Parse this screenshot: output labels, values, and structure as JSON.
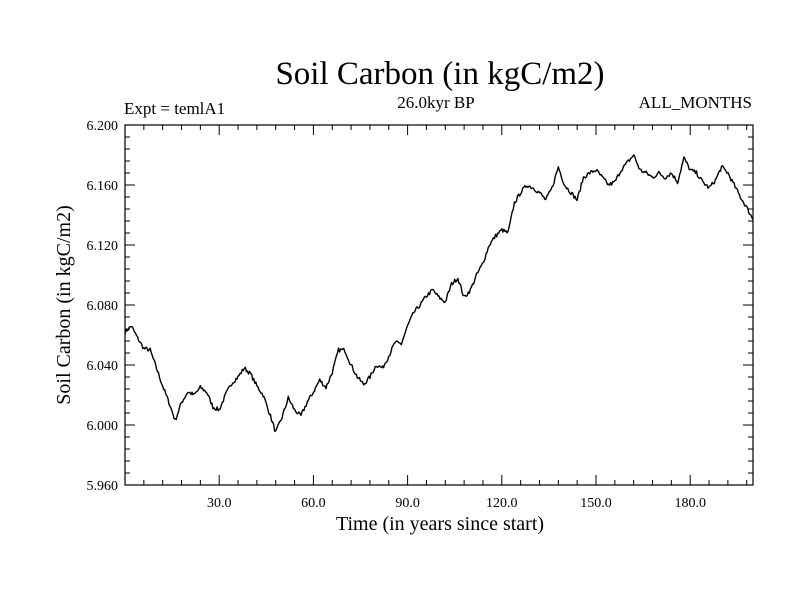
{
  "chart_data": {
    "type": "line",
    "title": "Soil Carbon (in kgC/m2)",
    "left_subtitle": "Expt = temlA1",
    "center_subtitle": "26.0kyr BP",
    "right_subtitle": "ALL_MONTHS",
    "xlabel": "Time (in years since start)",
    "ylabel": "Soil Carbon (in kgC/m2)",
    "xlim": [
      0,
      200
    ],
    "ylim": [
      5.96,
      6.2
    ],
    "xticks": [
      30,
      60,
      90,
      120,
      150,
      180
    ],
    "xtick_labels": [
      "30.0",
      "60.0",
      "90.0",
      "120.0",
      "150.0",
      "180.0"
    ],
    "yticks": [
      5.96,
      6.0,
      6.04,
      6.08,
      6.12,
      6.16,
      6.2
    ],
    "ytick_labels": [
      "5.960",
      "6.000",
      "6.040",
      "6.080",
      "6.120",
      "6.160",
      "6.200"
    ],
    "series": [
      {
        "name": "Soil Carbon",
        "color": "#000000",
        "x": [
          0,
          2,
          4,
          6,
          8,
          10,
          12,
          14,
          16,
          18,
          20,
          22,
          24,
          26,
          28,
          30,
          32,
          34,
          36,
          38,
          40,
          42,
          44,
          46,
          48,
          50,
          52,
          54,
          56,
          58,
          60,
          62,
          64,
          66,
          68,
          70,
          72,
          74,
          76,
          78,
          80,
          82,
          84,
          86,
          88,
          90,
          92,
          94,
          96,
          98,
          100,
          102,
          104,
          106,
          108,
          110,
          112,
          114,
          116,
          118,
          120,
          122,
          124,
          126,
          128,
          130,
          132,
          134,
          136,
          138,
          140,
          142,
          144,
          146,
          148,
          150,
          152,
          154,
          156,
          158,
          160,
          162,
          164,
          166,
          168,
          170,
          172,
          174,
          176,
          178,
          180,
          182,
          184,
          186,
          188,
          190,
          192,
          194,
          196,
          198,
          200
        ],
        "values": [
          6.062,
          6.066,
          6.058,
          6.051,
          6.05,
          6.038,
          6.026,
          6.015,
          6.003,
          6.015,
          6.022,
          6.02,
          6.025,
          6.022,
          6.012,
          6.01,
          6.02,
          6.028,
          6.032,
          6.038,
          6.034,
          6.026,
          6.02,
          6.008,
          5.995,
          6.005,
          6.018,
          6.01,
          6.006,
          6.015,
          6.022,
          6.03,
          6.025,
          6.035,
          6.05,
          6.05,
          6.04,
          6.032,
          6.027,
          6.032,
          6.04,
          6.038,
          6.046,
          6.055,
          6.054,
          6.066,
          6.075,
          6.08,
          6.086,
          6.09,
          6.085,
          6.082,
          6.094,
          6.098,
          6.085,
          6.09,
          6.1,
          6.108,
          6.12,
          6.126,
          6.13,
          6.128,
          6.148,
          6.155,
          6.16,
          6.158,
          6.155,
          6.15,
          6.158,
          6.172,
          6.16,
          6.155,
          6.15,
          6.165,
          6.168,
          6.17,
          6.165,
          6.16,
          6.162,
          6.17,
          6.175,
          6.18,
          6.17,
          6.168,
          6.165,
          6.168,
          6.165,
          6.168,
          6.162,
          6.178,
          6.17,
          6.168,
          6.162,
          6.158,
          6.163,
          6.172,
          6.168,
          6.16,
          6.152,
          6.145,
          6.137
        ]
      }
    ]
  }
}
